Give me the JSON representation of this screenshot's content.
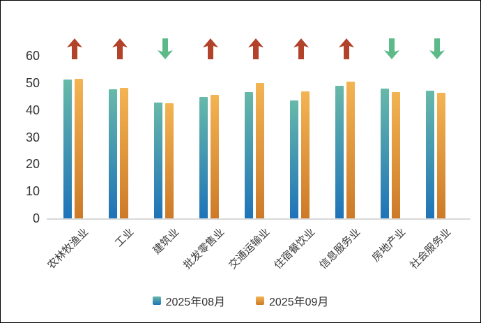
{
  "chart_data": {
    "type": "bar",
    "categories": [
      "农林牧渔业",
      "工业",
      "建筑业",
      "批发零售业",
      "交通运输业",
      "住宿餐饮业",
      "信息服务业",
      "房地产业",
      "社会服务业"
    ],
    "series": [
      {
        "name": "2025年08月",
        "values": [
          51.3,
          47.7,
          42.8,
          44.7,
          46.6,
          43.6,
          48.8,
          48.0,
          47.0
        ]
      },
      {
        "name": "2025年09月",
        "values": [
          51.6,
          48.2,
          42.4,
          45.7,
          49.9,
          46.9,
          50.6,
          46.6,
          46.4
        ]
      }
    ],
    "trend_arrows": [
      "up",
      "up",
      "down",
      "up",
      "up",
      "up",
      "up",
      "down",
      "down"
    ],
    "title": "",
    "xlabel": "",
    "ylabel": "",
    "yticks": [
      0,
      10,
      20,
      30,
      40,
      50,
      60
    ],
    "ylim": [
      0,
      60
    ],
    "grid": false,
    "legend_position": "bottom",
    "colors": {
      "series_aug_top": "#67b9a9",
      "series_aug_bottom": "#1e73b9",
      "series_sep_top": "#f3b453",
      "series_sep_bottom": "#cd7a28",
      "arrow_up": "#b2432a",
      "arrow_down": "#5cba88",
      "axis_line": "#d9d9d9",
      "text": "#333333"
    }
  }
}
